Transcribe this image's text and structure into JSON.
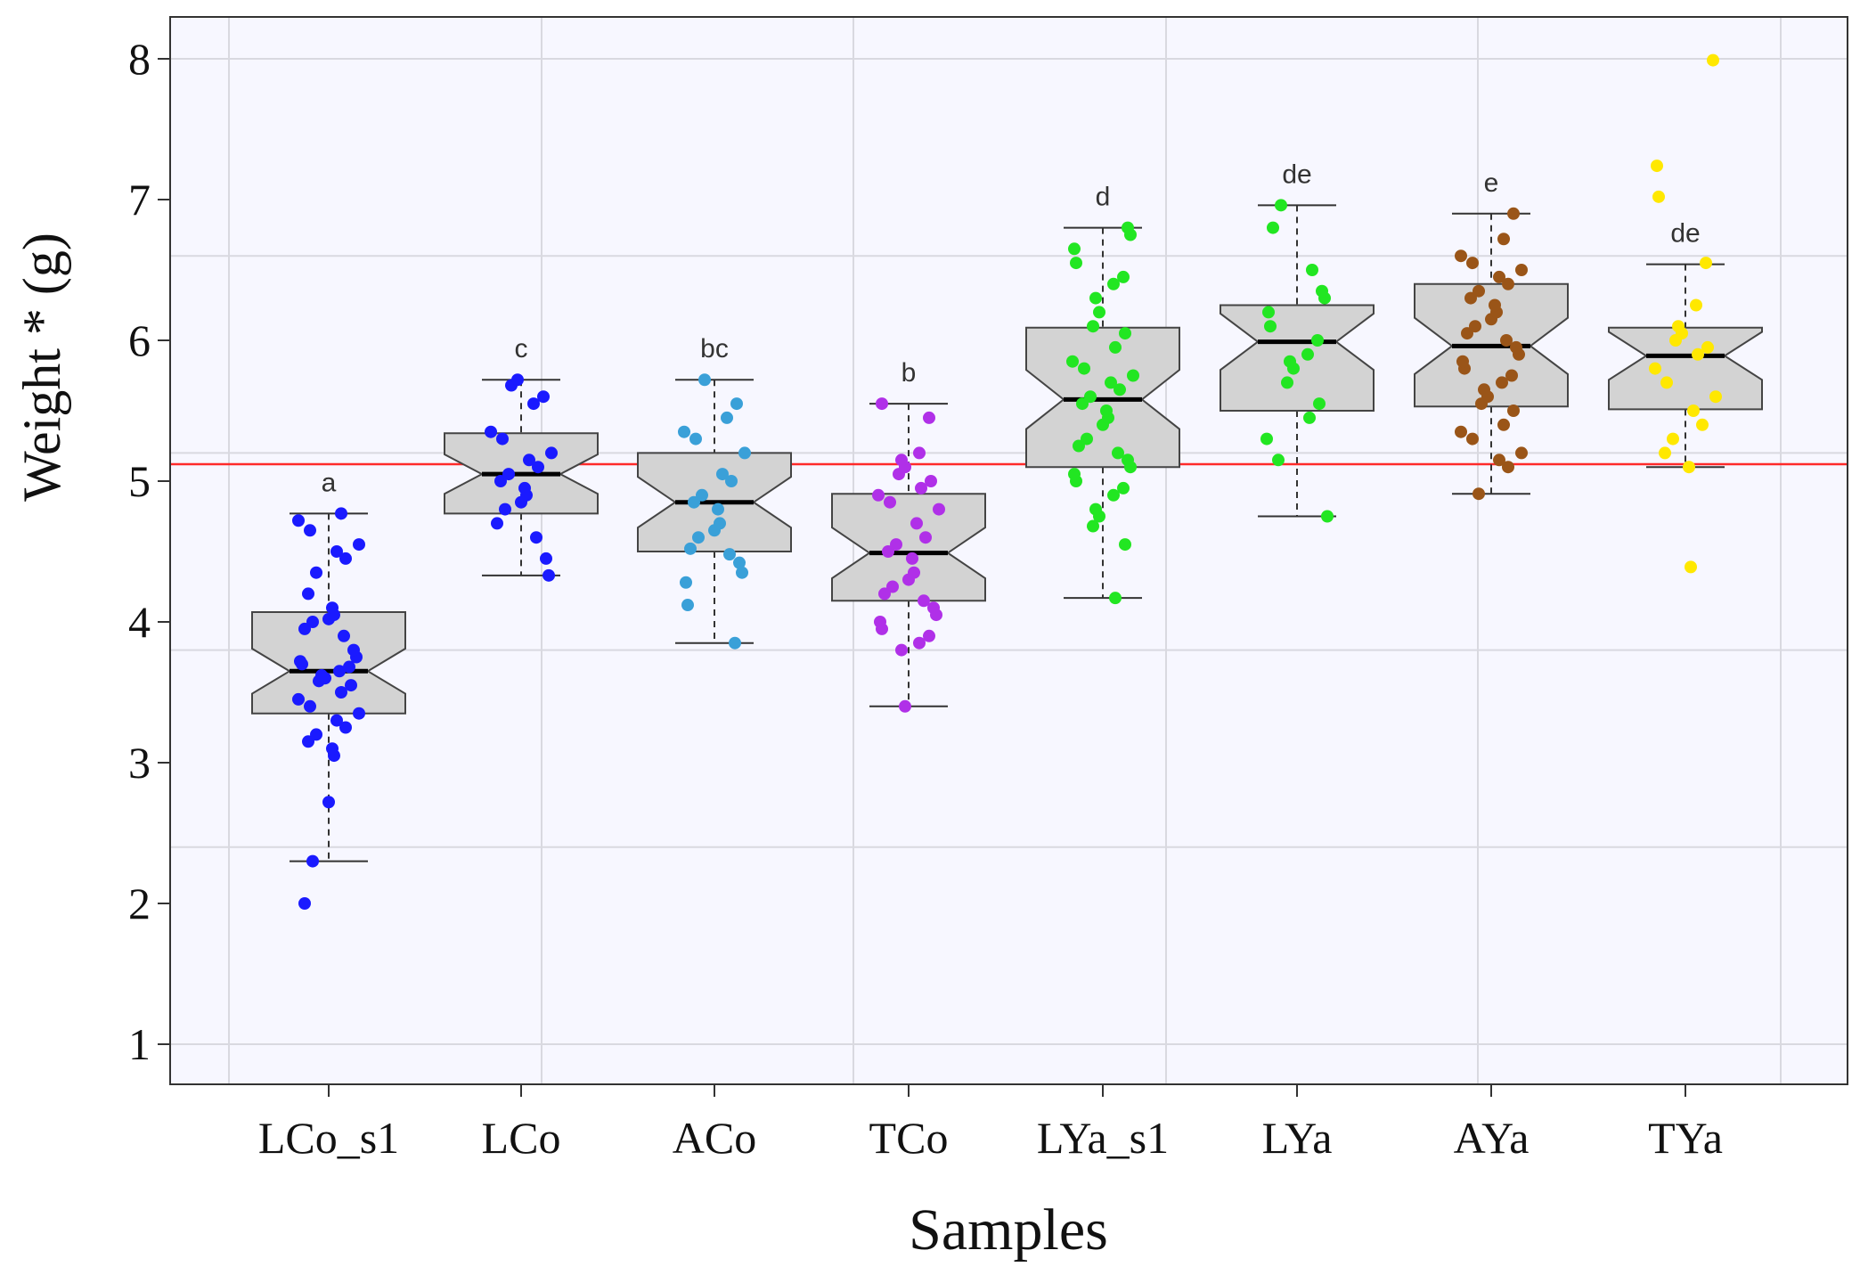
{
  "chart_data": {
    "type": "boxplot",
    "xlabel": "Samples",
    "ylabel": "Weight * (g)",
    "ylim": [
      0.7,
      8.3
    ],
    "y_ticks": [
      1,
      2,
      3,
      4,
      5,
      6,
      7,
      8
    ],
    "categories": [
      "LCo_s1",
      "LCo",
      "ACo",
      "TCo",
      "LYa_s1",
      "LYa",
      "AYa",
      "TYa"
    ],
    "reference_line": {
      "y": 5.12,
      "color": "#ff2a2a"
    },
    "colors": {
      "background": "#f7f7ff",
      "grid": "#d9d9e0",
      "box_fill": "#d3d3d3",
      "box_stroke": "#444444"
    },
    "series": [
      {
        "name": "LCo_s1",
        "color": "#1a1aff",
        "letter": "a",
        "whisker_low": 2.3,
        "q1": 3.35,
        "median": 3.65,
        "q3": 4.07,
        "whisker_high": 4.77,
        "notch_low": 3.49,
        "notch_high": 3.81,
        "points": [
          2.0,
          2.3,
          2.72,
          3.05,
          3.1,
          3.15,
          3.2,
          3.25,
          3.3,
          3.35,
          3.4,
          3.45,
          3.5,
          3.55,
          3.58,
          3.6,
          3.62,
          3.65,
          3.68,
          3.7,
          3.72,
          3.75,
          3.8,
          3.9,
          3.95,
          4.0,
          4.02,
          4.05,
          4.1,
          4.2,
          4.35,
          4.45,
          4.5,
          4.55,
          4.65,
          4.72,
          4.77
        ]
      },
      {
        "name": "LCo",
        "color": "#1a1aff",
        "letter": "c",
        "whisker_low": 4.33,
        "q1": 4.77,
        "median": 5.05,
        "q3": 5.34,
        "whisker_high": 5.72,
        "notch_low": 4.91,
        "notch_high": 5.19,
        "points": [
          4.33,
          4.45,
          4.6,
          4.7,
          4.8,
          4.85,
          4.9,
          4.95,
          5.0,
          5.05,
          5.1,
          5.15,
          5.2,
          5.3,
          5.35,
          5.55,
          5.6,
          5.68,
          5.72
        ]
      },
      {
        "name": "ACo",
        "color": "#3aa0d8",
        "letter": "bc",
        "whisker_low": 3.85,
        "q1": 4.5,
        "median": 4.85,
        "q3": 5.2,
        "whisker_high": 5.72,
        "notch_low": 4.67,
        "notch_high": 5.03,
        "points": [
          3.85,
          4.12,
          4.28,
          4.35,
          4.42,
          4.48,
          4.52,
          4.6,
          4.65,
          4.7,
          4.8,
          4.85,
          4.9,
          5.0,
          5.05,
          5.2,
          5.3,
          5.35,
          5.45,
          5.55,
          5.72
        ]
      },
      {
        "name": "TCo",
        "color": "#b030e8",
        "letter": "b",
        "whisker_low": 3.4,
        "q1": 4.15,
        "median": 4.49,
        "q3": 4.91,
        "whisker_high": 5.55,
        "notch_low": 4.31,
        "notch_high": 4.67,
        "points": [
          3.4,
          3.8,
          3.85,
          3.9,
          3.95,
          4.0,
          4.05,
          4.1,
          4.15,
          4.2,
          4.25,
          4.3,
          4.35,
          4.45,
          4.5,
          4.55,
          4.6,
          4.7,
          4.8,
          4.85,
          4.9,
          4.95,
          5.0,
          5.05,
          5.1,
          5.15,
          5.2,
          5.45,
          5.55
        ]
      },
      {
        "name": "LYa_s1",
        "color": "#22e622",
        "letter": "d",
        "whisker_low": 4.17,
        "q1": 5.1,
        "median": 5.58,
        "q3": 6.09,
        "whisker_high": 6.8,
        "notch_low": 5.37,
        "notch_high": 5.79,
        "points": [
          4.17,
          4.55,
          4.68,
          4.75,
          4.8,
          4.9,
          4.95,
          5.0,
          5.05,
          5.1,
          5.15,
          5.2,
          5.25,
          5.3,
          5.4,
          5.45,
          5.5,
          5.55,
          5.6,
          5.65,
          5.7,
          5.75,
          5.8,
          5.85,
          5.95,
          6.05,
          6.1,
          6.2,
          6.3,
          6.4,
          6.45,
          6.55,
          6.65,
          6.75,
          6.8
        ]
      },
      {
        "name": "LYa",
        "color": "#22e622",
        "letter": "de",
        "whisker_low": 4.75,
        "q1": 5.5,
        "median": 5.99,
        "q3": 6.25,
        "whisker_high": 6.96,
        "notch_low": 5.79,
        "notch_high": 6.19,
        "points": [
          4.75,
          5.15,
          5.3,
          5.45,
          5.55,
          5.7,
          5.8,
          5.85,
          5.9,
          6.0,
          6.1,
          6.2,
          6.3,
          6.35,
          6.5,
          6.8,
          6.96
        ]
      },
      {
        "name": "AYa",
        "color": "#9a5518",
        "letter": "e",
        "whisker_low": 4.91,
        "q1": 5.53,
        "median": 5.96,
        "q3": 6.4,
        "whisker_high": 6.9,
        "notch_low": 5.76,
        "notch_high": 6.16,
        "points": [
          4.91,
          5.1,
          5.15,
          5.2,
          5.3,
          5.35,
          5.4,
          5.5,
          5.55,
          5.6,
          5.65,
          5.7,
          5.75,
          5.8,
          5.85,
          5.9,
          5.95,
          6.0,
          6.05,
          6.1,
          6.15,
          6.2,
          6.25,
          6.3,
          6.35,
          6.4,
          6.45,
          6.5,
          6.55,
          6.6,
          6.72,
          6.9
        ]
      },
      {
        "name": "TYa",
        "color": "#ffe800",
        "letter": "de",
        "whisker_low": 5.1,
        "q1": 5.51,
        "median": 5.89,
        "q3": 6.09,
        "whisker_high": 6.54,
        "notch_low": 5.72,
        "notch_high": 6.06,
        "points": [
          4.39,
          5.1,
          5.2,
          5.3,
          5.4,
          5.5,
          5.6,
          5.7,
          5.8,
          5.9,
          5.95,
          6.0,
          6.05,
          6.1,
          6.25,
          6.55,
          7.02,
          7.24,
          7.99
        ]
      }
    ]
  }
}
